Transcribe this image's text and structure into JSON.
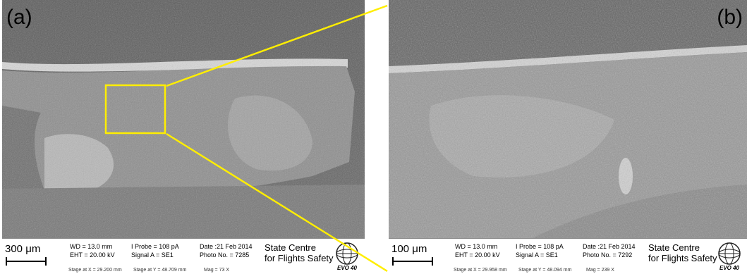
{
  "panels": [
    {
      "label": "(a)",
      "scale_bar": "300 μm",
      "wd": "WD = 13.0 mm",
      "eht": "EHT = 20.00 kV",
      "probe": "I Probe =   108 pA",
      "signal": "Signal A = SE1",
      "date": "Date :21 Feb 2014",
      "photo": "Photo No. = 7285",
      "mag": "Mag =   73 X",
      "stage_x": "Stage at X = 29.200 mm",
      "stage_y": "Stage at Y = 48.709 mm",
      "org_line1": "State Centre",
      "org_line2": "for Flights Safety",
      "logo_text": "EVO 40"
    },
    {
      "label": "(b)",
      "scale_bar": "100 μm",
      "wd": "WD = 13.0 mm",
      "eht": "EHT = 20.00 kV",
      "probe": "I Probe =   108 pA",
      "signal": "Signal A = SE1",
      "date": "Date :21 Feb 2014",
      "photo": "Photo No. = 7292",
      "mag": "Mag =   239 X",
      "stage_x": "Stage at X = 29.958 mm",
      "stage_y": "Stage at Y = 48.094 mm",
      "org_line1": "State Centre",
      "org_line2": "for Flights Safety",
      "logo_text": "EVO 40"
    }
  ],
  "colors": {
    "zoom_box": "#ffee00",
    "background": "#5a5a5a"
  }
}
